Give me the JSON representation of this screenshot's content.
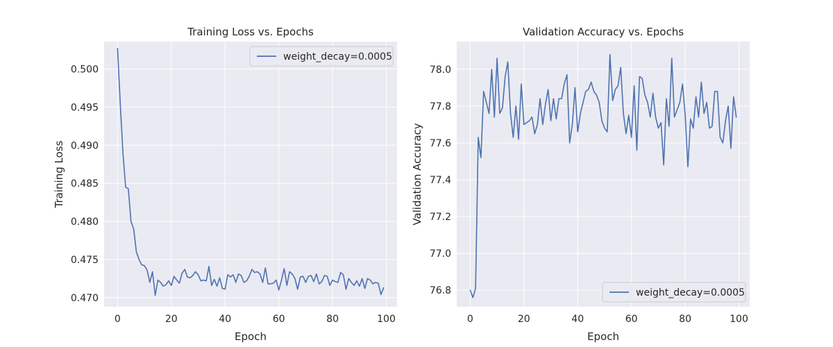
{
  "chart_data": [
    {
      "type": "line",
      "title": "Training Loss vs. Epochs",
      "xlabel": "Epoch",
      "ylabel": "Training Loss",
      "xlim": [
        -5,
        104
      ],
      "ylim": [
        0.4688,
        0.5036
      ],
      "xticks": [
        0,
        20,
        40,
        60,
        80,
        100
      ],
      "xtick_labels": [
        "0",
        "20",
        "40",
        "60",
        "80",
        "100"
      ],
      "yticks": [
        0.47,
        0.475,
        0.48,
        0.485,
        0.49,
        0.495,
        0.5
      ],
      "ytick_labels": [
        "0.470",
        "0.475",
        "0.480",
        "0.485",
        "0.490",
        "0.495",
        "0.500"
      ],
      "grid": true,
      "legend_position": "top-right",
      "series": [
        {
          "name": "weight_decay=0.0005",
          "color": "#4c72b0",
          "x": [
            0,
            1,
            2,
            3,
            4,
            5,
            6,
            7,
            8,
            9,
            10,
            11,
            12,
            13,
            14,
            15,
            16,
            17,
            18,
            19,
            20,
            21,
            22,
            23,
            24,
            25,
            26,
            27,
            28,
            29,
            30,
            31,
            32,
            33,
            34,
            35,
            36,
            37,
            38,
            39,
            40,
            41,
            42,
            43,
            44,
            45,
            46,
            47,
            48,
            49,
            50,
            51,
            52,
            53,
            54,
            55,
            56,
            57,
            58,
            59,
            60,
            61,
            62,
            63,
            64,
            65,
            66,
            67,
            68,
            69,
            70,
            71,
            72,
            73,
            74,
            75,
            76,
            77,
            78,
            79,
            80,
            81,
            82,
            83,
            84,
            85,
            86,
            87,
            88,
            89,
            90,
            91,
            92,
            93,
            94,
            95,
            96,
            97,
            98,
            99
          ],
          "values": [
            0.5027,
            0.4955,
            0.489,
            0.4845,
            0.4843,
            0.48,
            0.479,
            0.476,
            0.475,
            0.4743,
            0.4742,
            0.4736,
            0.472,
            0.4734,
            0.4703,
            0.4723,
            0.472,
            0.4715,
            0.4717,
            0.4722,
            0.4716,
            0.4728,
            0.4723,
            0.4719,
            0.4732,
            0.4737,
            0.4727,
            0.4726,
            0.4729,
            0.4734,
            0.473,
            0.4722,
            0.4723,
            0.4722,
            0.4741,
            0.4716,
            0.4724,
            0.4715,
            0.4726,
            0.4712,
            0.4711,
            0.473,
            0.4727,
            0.473,
            0.472,
            0.4731,
            0.4729,
            0.472,
            0.4722,
            0.4728,
            0.4737,
            0.4733,
            0.4734,
            0.4731,
            0.472,
            0.4739,
            0.4718,
            0.4718,
            0.4719,
            0.4723,
            0.471,
            0.4723,
            0.4738,
            0.4716,
            0.4734,
            0.4731,
            0.4725,
            0.4711,
            0.4727,
            0.4728,
            0.472,
            0.4728,
            0.4729,
            0.4721,
            0.4731,
            0.4718,
            0.4721,
            0.4729,
            0.4728,
            0.4716,
            0.4723,
            0.4721,
            0.472,
            0.4733,
            0.473,
            0.4711,
            0.4725,
            0.472,
            0.4716,
            0.4722,
            0.4715,
            0.4725,
            0.4712,
            0.4725,
            0.4723,
            0.4718,
            0.472,
            0.4719,
            0.4704,
            0.4713
          ]
        }
      ]
    },
    {
      "type": "line",
      "title": "Validation Accuracy vs. Epochs",
      "xlabel": "Epoch",
      "ylabel": "Validation Accuracy",
      "xlim": [
        -5,
        104
      ],
      "ylim": [
        76.71,
        78.15
      ],
      "xticks": [
        0,
        20,
        40,
        60,
        80,
        100
      ],
      "xtick_labels": [
        "0",
        "20",
        "40",
        "60",
        "80",
        "100"
      ],
      "yticks": [
        76.8,
        77.0,
        77.2,
        77.4,
        77.6,
        77.8,
        78.0
      ],
      "ytick_labels": [
        "76.8",
        "77.0",
        "77.2",
        "77.4",
        "77.6",
        "77.8",
        "78.0"
      ],
      "grid": true,
      "legend_position": "bottom-right",
      "series": [
        {
          "name": "weight_decay=0.0005",
          "color": "#4c72b0",
          "x": [
            0,
            1,
            2,
            3,
            4,
            5,
            6,
            7,
            8,
            9,
            10,
            11,
            12,
            13,
            14,
            15,
            16,
            17,
            18,
            19,
            20,
            21,
            22,
            23,
            24,
            25,
            26,
            27,
            28,
            29,
            30,
            31,
            32,
            33,
            34,
            35,
            36,
            37,
            38,
            39,
            40,
            41,
            42,
            43,
            44,
            45,
            46,
            47,
            48,
            49,
            50,
            51,
            52,
            53,
            54,
            55,
            56,
            57,
            58,
            59,
            60,
            61,
            62,
            63,
            64,
            65,
            66,
            67,
            68,
            69,
            70,
            71,
            72,
            73,
            74,
            75,
            76,
            77,
            78,
            79,
            80,
            81,
            82,
            83,
            84,
            85,
            86,
            87,
            88,
            89,
            90,
            91,
            92,
            93,
            94,
            95,
            96,
            97,
            98,
            99
          ],
          "values": [
            76.8,
            76.76,
            76.81,
            77.63,
            77.52,
            77.88,
            77.82,
            77.76,
            78.0,
            77.74,
            78.06,
            77.76,
            77.79,
            77.96,
            78.04,
            77.76,
            77.63,
            77.8,
            77.62,
            77.92,
            77.7,
            77.71,
            77.72,
            77.74,
            77.65,
            77.7,
            77.84,
            77.7,
            77.81,
            77.89,
            77.72,
            77.84,
            77.73,
            77.84,
            77.84,
            77.92,
            77.97,
            77.6,
            77.7,
            77.9,
            77.66,
            77.76,
            77.82,
            77.88,
            77.89,
            77.93,
            77.88,
            77.86,
            77.82,
            77.72,
            77.68,
            77.66,
            78.08,
            77.83,
            77.89,
            77.91,
            78.01,
            77.76,
            77.65,
            77.75,
            77.63,
            77.91,
            77.56,
            77.96,
            77.95,
            77.86,
            77.82,
            77.74,
            77.87,
            77.74,
            77.68,
            77.71,
            77.48,
            77.84,
            77.69,
            78.06,
            77.74,
            77.78,
            77.82,
            77.92,
            77.75,
            77.47,
            77.73,
            77.68,
            77.85,
            77.74,
            77.93,
            77.76,
            77.82,
            77.68,
            77.69,
            77.88,
            77.88,
            77.63,
            77.6,
            77.72,
            77.8,
            77.57,
            77.85,
            77.74
          ]
        }
      ]
    }
  ]
}
